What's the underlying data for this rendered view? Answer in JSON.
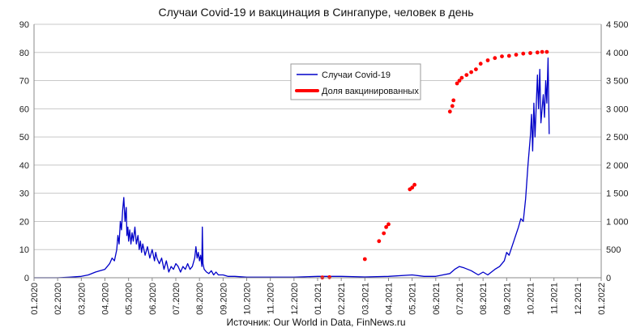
{
  "chart_data": {
    "type": "line",
    "title": "Случаи Covid-19 и вакцинация в Сингапуре, человек в день",
    "source": "Источник: Our World in Data, FinNews.ru",
    "x_categories": [
      "01.2020",
      "02.2020",
      "03.2020",
      "04.2020",
      "05.2020",
      "06.2020",
      "07.2020",
      "08.2020",
      "09.2020",
      "10.2020",
      "11.2020",
      "12.2020",
      "01.2021",
      "02.2021",
      "03.2021",
      "04.2021",
      "05.2021",
      "06.2021",
      "07.2021",
      "08.2021",
      "09.2021",
      "10.2021",
      "11.2021",
      "12.2021",
      "01.2022"
    ],
    "y_left": {
      "min": 0,
      "max": 90,
      "ticks": [
        "0",
        "10",
        "20",
        "30",
        "40",
        "50",
        "60",
        "70",
        "80",
        "90"
      ]
    },
    "y_right": {
      "min": 0,
      "max": 4500,
      "ticks": [
        "0",
        "500",
        "1 000",
        "1 500",
        "2 000",
        "2 500",
        "3 000",
        "3 500",
        "4 000",
        "4 500"
      ]
    },
    "gridlines": "horizontal",
    "legend": {
      "position": "top-center-right"
    },
    "series": [
      {
        "name": "Случаи Covid-19",
        "axis": "left",
        "color": "#0000c8",
        "style": "line",
        "points": [
          [
            0,
            0
          ],
          [
            1,
            0
          ],
          [
            1.5,
            0.2
          ],
          [
            2,
            0.5
          ],
          [
            2.3,
            1
          ],
          [
            2.6,
            2
          ],
          [
            2.8,
            2.5
          ],
          [
            3,
            3
          ],
          [
            3.2,
            5
          ],
          [
            3.3,
            7
          ],
          [
            3.4,
            6
          ],
          [
            3.5,
            10
          ],
          [
            3.55,
            15
          ],
          [
            3.6,
            12
          ],
          [
            3.65,
            20
          ],
          [
            3.7,
            17
          ],
          [
            3.75,
            24
          ],
          [
            3.8,
            28.5
          ],
          [
            3.85,
            20
          ],
          [
            3.9,
            25
          ],
          [
            3.93,
            15
          ],
          [
            3.97,
            18
          ],
          [
            4,
            13
          ],
          [
            4.05,
            17
          ],
          [
            4.1,
            12
          ],
          [
            4.15,
            16
          ],
          [
            4.2,
            13
          ],
          [
            4.27,
            18
          ],
          [
            4.33,
            12
          ],
          [
            4.4,
            15
          ],
          [
            4.45,
            10
          ],
          [
            4.5,
            13
          ],
          [
            4.55,
            9
          ],
          [
            4.6,
            12
          ],
          [
            4.7,
            8
          ],
          [
            4.8,
            11
          ],
          [
            4.9,
            7
          ],
          [
            5,
            10
          ],
          [
            5.1,
            6
          ],
          [
            5.15,
            9
          ],
          [
            5.2,
            7
          ],
          [
            5.3,
            5
          ],
          [
            5.4,
            7
          ],
          [
            5.5,
            3
          ],
          [
            5.6,
            6
          ],
          [
            5.7,
            2
          ],
          [
            5.8,
            4
          ],
          [
            5.9,
            3
          ],
          [
            6,
            5
          ],
          [
            6.1,
            4
          ],
          [
            6.2,
            2
          ],
          [
            6.3,
            4
          ],
          [
            6.4,
            3
          ],
          [
            6.5,
            5
          ],
          [
            6.6,
            3
          ],
          [
            6.7,
            4
          ],
          [
            6.8,
            7
          ],
          [
            6.85,
            11
          ],
          [
            6.9,
            7
          ],
          [
            6.95,
            9
          ],
          [
            7,
            6
          ],
          [
            7.05,
            8
          ],
          [
            7.1,
            4
          ],
          [
            7.12,
            18
          ],
          [
            7.15,
            5
          ],
          [
            7.2,
            3
          ],
          [
            7.3,
            2
          ],
          [
            7.4,
            1.5
          ],
          [
            7.5,
            2.5
          ],
          [
            7.6,
            1
          ],
          [
            7.7,
            2
          ],
          [
            7.8,
            1
          ],
          [
            8,
            1
          ],
          [
            8.2,
            0.5
          ],
          [
            8.5,
            0.5
          ],
          [
            9,
            0.2
          ],
          [
            10,
            0.2
          ],
          [
            11,
            0.2
          ],
          [
            12,
            0.5
          ],
          [
            13,
            0.5
          ],
          [
            14,
            0.3
          ],
          [
            15,
            0.5
          ],
          [
            16,
            1
          ],
          [
            16.5,
            0.5
          ],
          [
            17,
            0.5
          ],
          [
            17.3,
            1
          ],
          [
            17.6,
            1.5
          ],
          [
            17.8,
            3
          ],
          [
            18,
            4
          ],
          [
            18.2,
            3.5
          ],
          [
            18.5,
            2.5
          ],
          [
            18.8,
            1
          ],
          [
            19,
            2
          ],
          [
            19.2,
            1
          ],
          [
            19.5,
            3
          ],
          [
            19.7,
            4
          ],
          [
            19.9,
            6
          ],
          [
            20,
            9
          ],
          [
            20.1,
            8
          ],
          [
            20.3,
            13
          ],
          [
            20.5,
            18
          ],
          [
            20.6,
            21
          ],
          [
            20.7,
            20
          ],
          [
            20.8,
            28
          ],
          [
            20.9,
            40
          ],
          [
            21,
            50
          ],
          [
            21.05,
            58
          ],
          [
            21.1,
            45
          ],
          [
            21.15,
            62
          ],
          [
            21.2,
            50
          ],
          [
            21.3,
            72
          ],
          [
            21.35,
            60
          ],
          [
            21.4,
            74
          ],
          [
            21.45,
            55
          ],
          [
            21.5,
            60
          ],
          [
            21.55,
            65
          ],
          [
            21.6,
            57
          ],
          [
            21.65,
            70
          ],
          [
            21.7,
            62
          ],
          [
            21.75,
            78
          ],
          [
            21.8,
            51
          ]
        ]
      },
      {
        "name": "Доля вакцинированных",
        "axis": "right",
        "color": "#ff0000",
        "style": "thick-dots",
        "points": [
          [
            12.2,
            5
          ],
          [
            12.5,
            10
          ],
          [
            14,
            330
          ],
          [
            14.6,
            650
          ],
          [
            14.8,
            790
          ],
          [
            14.9,
            900
          ],
          [
            15,
            950
          ],
          [
            15.9,
            1570
          ],
          [
            16,
            1600
          ],
          [
            16.1,
            1650
          ],
          [
            17.6,
            2950
          ],
          [
            17.7,
            3050
          ],
          [
            17.75,
            3150
          ],
          [
            17.9,
            3450
          ],
          [
            18,
            3500
          ],
          [
            18.1,
            3550
          ],
          [
            18.3,
            3600
          ],
          [
            18.5,
            3650
          ],
          [
            18.7,
            3700
          ],
          [
            18.9,
            3800
          ],
          [
            19.2,
            3860
          ],
          [
            19.5,
            3900
          ],
          [
            19.8,
            3930
          ],
          [
            20.1,
            3940
          ],
          [
            20.4,
            3960
          ],
          [
            20.7,
            3980
          ],
          [
            21,
            3990
          ],
          [
            21.3,
            4000
          ],
          [
            21.5,
            4010
          ],
          [
            21.7,
            4010
          ]
        ]
      }
    ]
  }
}
